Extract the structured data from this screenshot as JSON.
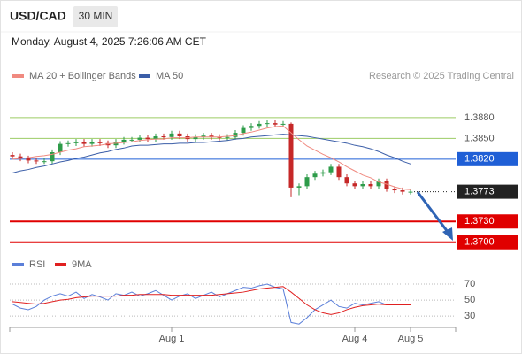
{
  "header": {
    "symbol": "USD/CAD",
    "interval": "30 MIN",
    "timestamp": "Monday, August 4, 2025 7:26:06 AM CET"
  },
  "chart_data": [
    {
      "type": "candlestick",
      "credit": "Research © 2025 Trading Central",
      "open": [
        1.3826,
        1.3824,
        1.3821,
        1.3818,
        1.3817,
        1.3817,
        1.383,
        1.3842,
        1.3843,
        1.3845,
        1.3842,
        1.3845,
        1.3843,
        1.384,
        1.3845,
        1.3848,
        1.3848,
        1.3851,
        1.3849,
        1.3853,
        1.3852,
        1.3857,
        1.3853,
        1.3849,
        1.3852,
        1.3854,
        1.3852,
        1.3851,
        1.3852,
        1.3858,
        1.3865,
        1.3868,
        1.3871,
        1.3872,
        1.387,
        1.3871,
        1.3779,
        1.3781,
        1.3794,
        1.3799,
        1.3801,
        1.3809,
        1.3794,
        1.3785,
        1.3781,
        1.3784,
        1.3781,
        1.3788,
        1.3777,
        1.3775,
        1.3773
      ],
      "high": [
        1.383,
        1.3828,
        1.3825,
        1.3822,
        1.3821,
        1.3834,
        1.3846,
        1.3847,
        1.3849,
        1.3849,
        1.3849,
        1.3849,
        1.3847,
        1.3849,
        1.3852,
        1.3852,
        1.3855,
        1.3855,
        1.3857,
        1.3857,
        1.3861,
        1.3861,
        1.3857,
        1.3856,
        1.3858,
        1.3858,
        1.3856,
        1.3856,
        1.3862,
        1.3869,
        1.3872,
        1.3875,
        1.3876,
        1.3876,
        1.3875,
        1.3873,
        1.3785,
        1.3798,
        1.3803,
        1.3805,
        1.3813,
        1.3813,
        1.3798,
        1.3789,
        1.3788,
        1.3788,
        1.3792,
        1.3792,
        1.3781,
        1.3779,
        1.3777
      ],
      "low": [
        1.382,
        1.3817,
        1.3814,
        1.3813,
        1.3813,
        1.3813,
        1.3826,
        1.3838,
        1.3839,
        1.3838,
        1.3838,
        1.3839,
        1.3836,
        1.3836,
        1.3841,
        1.3844,
        1.3844,
        1.3845,
        1.3845,
        1.3848,
        1.3848,
        1.3849,
        1.3845,
        1.3845,
        1.3848,
        1.3848,
        1.3847,
        1.3847,
        1.3848,
        1.3854,
        1.3861,
        1.3864,
        1.3867,
        1.3866,
        1.3866,
        1.3765,
        1.3768,
        1.3777,
        1.379,
        1.3795,
        1.3797,
        1.379,
        1.3781,
        1.3777,
        1.3777,
        1.3777,
        1.3777,
        1.3773,
        1.3771,
        1.3769,
        1.3769
      ],
      "close": [
        1.3824,
        1.3821,
        1.3818,
        1.3817,
        1.3817,
        1.383,
        1.3842,
        1.3843,
        1.3845,
        1.3842,
        1.3845,
        1.3843,
        1.384,
        1.3845,
        1.3848,
        1.3848,
        1.3851,
        1.3849,
        1.3853,
        1.3852,
        1.3857,
        1.3853,
        1.3849,
        1.3852,
        1.3854,
        1.3852,
        1.3851,
        1.3852,
        1.3858,
        1.3865,
        1.3868,
        1.3871,
        1.3872,
        1.387,
        1.3871,
        1.3779,
        1.3781,
        1.3794,
        1.3799,
        1.3801,
        1.3809,
        1.3794,
        1.3785,
        1.3781,
        1.3784,
        1.3781,
        1.3788,
        1.3777,
        1.3775,
        1.3773,
        1.3773
      ],
      "colors": {
        "up": "#2e9c4a",
        "down": "#c62828"
      },
      "series": [
        {
          "name": "MA 20 + Bollinger Bands",
          "color": "#f08a80",
          "values": [
            1.382,
            1.3821,
            1.3822,
            1.3824,
            1.3825,
            1.3827,
            1.383,
            1.3833,
            1.3835,
            1.3838,
            1.3839,
            1.384,
            1.3842,
            1.3843,
            1.3844,
            1.3845,
            1.3847,
            1.3848,
            1.3849,
            1.3849,
            1.3851,
            1.3851,
            1.3851,
            1.3852,
            1.3852,
            1.3852,
            1.3852,
            1.3853,
            1.3854,
            1.3857,
            1.3859,
            1.3862,
            1.3865,
            1.3867,
            1.3868,
            1.3858,
            1.3848,
            1.3839,
            1.3833,
            1.3827,
            1.3822,
            1.3816,
            1.3809,
            1.3803,
            1.3797,
            1.3793,
            1.3787,
            1.3784,
            1.378,
            1.3777,
            1.3776
          ]
        },
        {
          "name": "MA 50",
          "color": "#3b5ea8",
          "values": [
            1.38,
            1.3803,
            1.3805,
            1.3808,
            1.381,
            1.3813,
            1.3816,
            1.3818,
            1.3821,
            1.3823,
            1.3826,
            1.3829,
            1.3831,
            1.3834,
            1.3836,
            1.3839,
            1.384,
            1.384,
            1.3841,
            1.3842,
            1.3842,
            1.3843,
            1.3843,
            1.3844,
            1.3844,
            1.3845,
            1.3846,
            1.3847,
            1.3849,
            1.385,
            1.3852,
            1.3853,
            1.3854,
            1.3855,
            1.3856,
            1.3855,
            1.3854,
            1.3853,
            1.3851,
            1.3849,
            1.3847,
            1.3845,
            1.3843,
            1.384,
            1.3838,
            1.3835,
            1.3831,
            1.3826,
            1.3822,
            1.3817,
            1.3813
          ]
        }
      ],
      "ylim": [
        1.3692,
        1.3922
      ],
      "levels": [
        {
          "value": 1.388,
          "label": "1.3880",
          "color": "#9ccc65",
          "label_style": "text",
          "line_style": "solid",
          "line_width": 1
        },
        {
          "value": 1.385,
          "label": "1.3850",
          "color": "#9ccc65",
          "label_style": "text",
          "line_style": "solid",
          "line_width": 1
        },
        {
          "value": 1.382,
          "label": "1.3820",
          "color": "#1f5fd6",
          "label_style": "box",
          "line_style": "solid",
          "line_width": 1
        },
        {
          "value": 1.3773,
          "label": "1.3773",
          "color": "#222222",
          "label_style": "box",
          "line_style": "dotted",
          "line_width": 1
        },
        {
          "value": 1.373,
          "label": "1.3730",
          "color": "#e00000",
          "label_style": "box",
          "line_style": "solid",
          "line_width": 2
        },
        {
          "value": 1.37,
          "label": "1.3700",
          "color": "#e00000",
          "label_style": "box",
          "line_style": "solid",
          "line_width": 2
        }
      ]
    },
    {
      "type": "line",
      "categories": [
        null,
        null,
        null,
        null,
        null,
        null,
        null,
        null,
        null,
        null,
        null,
        null,
        null,
        null,
        null,
        null,
        null,
        null,
        null,
        null,
        "Aug 1",
        null,
        null,
        null,
        null,
        null,
        null,
        null,
        null,
        null,
        null,
        null,
        null,
        null,
        null,
        null,
        null,
        null,
        null,
        null,
        null,
        null,
        null,
        "Aug 4",
        null,
        null,
        null,
        null,
        null,
        null,
        "Aug 5"
      ],
      "series": [
        {
          "name": "RSI",
          "color": "#5b7fd9",
          "values": [
            45,
            40,
            38,
            42,
            50,
            55,
            58,
            55,
            60,
            52,
            57,
            54,
            50,
            58,
            56,
            60,
            55,
            58,
            62,
            56,
            50,
            55,
            58,
            52,
            56,
            60,
            54,
            58,
            62,
            66,
            65,
            68,
            70,
            66,
            64,
            22,
            20,
            28,
            38,
            44,
            50,
            42,
            40,
            46,
            44,
            46,
            48,
            44,
            45,
            44,
            44
          ]
        },
        {
          "name": "9MA",
          "color": "#e02020",
          "values": [
            48,
            47,
            46,
            45,
            46,
            48,
            50,
            51,
            53,
            54,
            55,
            55,
            55,
            55,
            56,
            56,
            57,
            57,
            57,
            57,
            56,
            56,
            56,
            56,
            56,
            56,
            57,
            58,
            59,
            60,
            62,
            64,
            65,
            66,
            67,
            60,
            52,
            44,
            38,
            34,
            32,
            34,
            38,
            41,
            43,
            44,
            45,
            44,
            44,
            44,
            44
          ]
        }
      ],
      "ylim": [
        18,
        80
      ],
      "yticks": [
        70,
        50,
        30
      ],
      "grid": true
    }
  ]
}
